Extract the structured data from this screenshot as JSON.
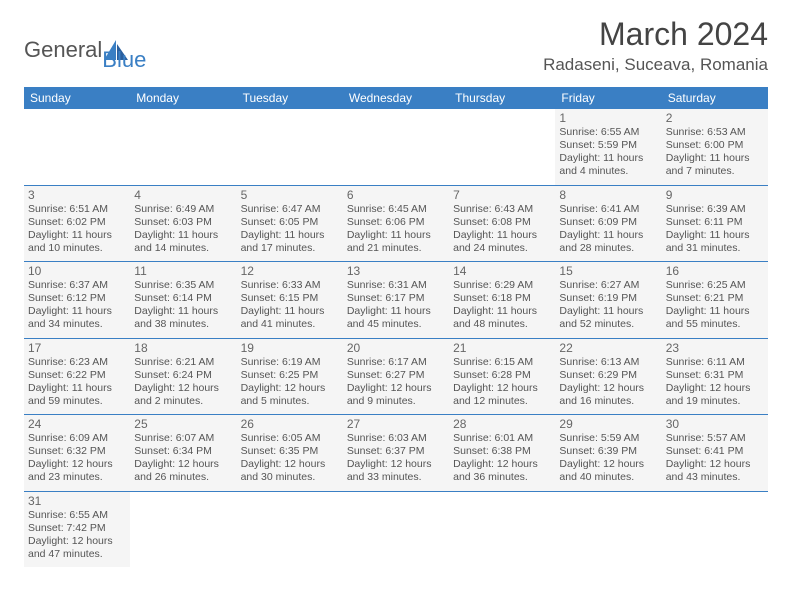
{
  "logo": {
    "text1": "General",
    "text2": "Blue"
  },
  "title": "March 2024",
  "location": "Radaseni, Suceava, Romania",
  "colors": {
    "header_bg": "#3a7fc4",
    "header_fg": "#ffffff",
    "cell_bg": "#f5f5f5",
    "border": "#3a7fc4",
    "text": "#555555",
    "daynum": "#666666"
  },
  "day_headers": [
    "Sunday",
    "Monday",
    "Tuesday",
    "Wednesday",
    "Thursday",
    "Friday",
    "Saturday"
  ],
  "weeks": [
    [
      null,
      null,
      null,
      null,
      null,
      {
        "n": "1",
        "sr": "6:55 AM",
        "ss": "5:59 PM",
        "dl": "11 hours and 4 minutes."
      },
      {
        "n": "2",
        "sr": "6:53 AM",
        "ss": "6:00 PM",
        "dl": "11 hours and 7 minutes."
      }
    ],
    [
      {
        "n": "3",
        "sr": "6:51 AM",
        "ss": "6:02 PM",
        "dl": "11 hours and 10 minutes."
      },
      {
        "n": "4",
        "sr": "6:49 AM",
        "ss": "6:03 PM",
        "dl": "11 hours and 14 minutes."
      },
      {
        "n": "5",
        "sr": "6:47 AM",
        "ss": "6:05 PM",
        "dl": "11 hours and 17 minutes."
      },
      {
        "n": "6",
        "sr": "6:45 AM",
        "ss": "6:06 PM",
        "dl": "11 hours and 21 minutes."
      },
      {
        "n": "7",
        "sr": "6:43 AM",
        "ss": "6:08 PM",
        "dl": "11 hours and 24 minutes."
      },
      {
        "n": "8",
        "sr": "6:41 AM",
        "ss": "6:09 PM",
        "dl": "11 hours and 28 minutes."
      },
      {
        "n": "9",
        "sr": "6:39 AM",
        "ss": "6:11 PM",
        "dl": "11 hours and 31 minutes."
      }
    ],
    [
      {
        "n": "10",
        "sr": "6:37 AM",
        "ss": "6:12 PM",
        "dl": "11 hours and 34 minutes."
      },
      {
        "n": "11",
        "sr": "6:35 AM",
        "ss": "6:14 PM",
        "dl": "11 hours and 38 minutes."
      },
      {
        "n": "12",
        "sr": "6:33 AM",
        "ss": "6:15 PM",
        "dl": "11 hours and 41 minutes."
      },
      {
        "n": "13",
        "sr": "6:31 AM",
        "ss": "6:17 PM",
        "dl": "11 hours and 45 minutes."
      },
      {
        "n": "14",
        "sr": "6:29 AM",
        "ss": "6:18 PM",
        "dl": "11 hours and 48 minutes."
      },
      {
        "n": "15",
        "sr": "6:27 AM",
        "ss": "6:19 PM",
        "dl": "11 hours and 52 minutes."
      },
      {
        "n": "16",
        "sr": "6:25 AM",
        "ss": "6:21 PM",
        "dl": "11 hours and 55 minutes."
      }
    ],
    [
      {
        "n": "17",
        "sr": "6:23 AM",
        "ss": "6:22 PM",
        "dl": "11 hours and 59 minutes."
      },
      {
        "n": "18",
        "sr": "6:21 AM",
        "ss": "6:24 PM",
        "dl": "12 hours and 2 minutes."
      },
      {
        "n": "19",
        "sr": "6:19 AM",
        "ss": "6:25 PM",
        "dl": "12 hours and 5 minutes."
      },
      {
        "n": "20",
        "sr": "6:17 AM",
        "ss": "6:27 PM",
        "dl": "12 hours and 9 minutes."
      },
      {
        "n": "21",
        "sr": "6:15 AM",
        "ss": "6:28 PM",
        "dl": "12 hours and 12 minutes."
      },
      {
        "n": "22",
        "sr": "6:13 AM",
        "ss": "6:29 PM",
        "dl": "12 hours and 16 minutes."
      },
      {
        "n": "23",
        "sr": "6:11 AM",
        "ss": "6:31 PM",
        "dl": "12 hours and 19 minutes."
      }
    ],
    [
      {
        "n": "24",
        "sr": "6:09 AM",
        "ss": "6:32 PM",
        "dl": "12 hours and 23 minutes."
      },
      {
        "n": "25",
        "sr": "6:07 AM",
        "ss": "6:34 PM",
        "dl": "12 hours and 26 minutes."
      },
      {
        "n": "26",
        "sr": "6:05 AM",
        "ss": "6:35 PM",
        "dl": "12 hours and 30 minutes."
      },
      {
        "n": "27",
        "sr": "6:03 AM",
        "ss": "6:37 PM",
        "dl": "12 hours and 33 minutes."
      },
      {
        "n": "28",
        "sr": "6:01 AM",
        "ss": "6:38 PM",
        "dl": "12 hours and 36 minutes."
      },
      {
        "n": "29",
        "sr": "5:59 AM",
        "ss": "6:39 PM",
        "dl": "12 hours and 40 minutes."
      },
      {
        "n": "30",
        "sr": "5:57 AM",
        "ss": "6:41 PM",
        "dl": "12 hours and 43 minutes."
      }
    ],
    [
      {
        "n": "31",
        "sr": "6:55 AM",
        "ss": "7:42 PM",
        "dl": "12 hours and 47 minutes."
      },
      null,
      null,
      null,
      null,
      null,
      null
    ]
  ],
  "labels": {
    "sunrise": "Sunrise: ",
    "sunset": "Sunset: ",
    "daylight": "Daylight: "
  }
}
